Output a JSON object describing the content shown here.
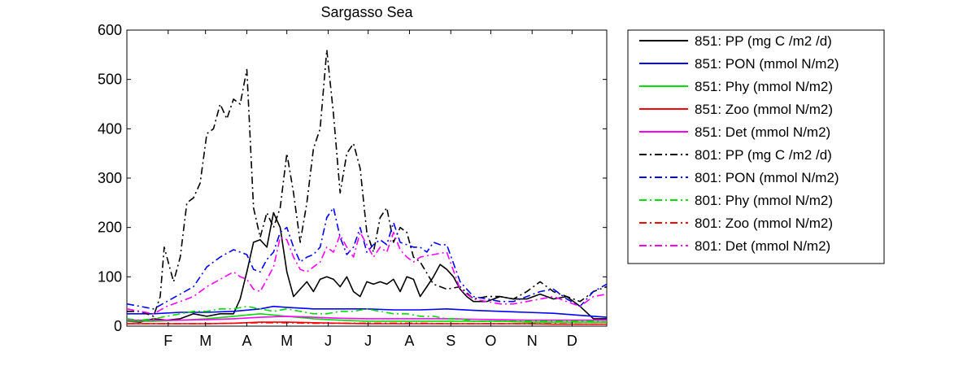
{
  "chart_data": {
    "type": "line",
    "title": "Sargasso Sea",
    "xlabel": "",
    "ylabel": "",
    "xlim": [
      0,
      360
    ],
    "ylim": [
      0,
      600
    ],
    "grid": false,
    "legend_position": "outside-right",
    "month_ticks": [
      {
        "label": "F",
        "x": 31
      },
      {
        "label": "M",
        "x": 59
      },
      {
        "label": "A",
        "x": 90
      },
      {
        "label": "M",
        "x": 120
      },
      {
        "label": "J",
        "x": 151
      },
      {
        "label": "J",
        "x": 181
      },
      {
        "label": "A",
        "x": 212
      },
      {
        "label": "S",
        "x": 243
      },
      {
        "label": "O",
        "x": 273
      },
      {
        "label": "N",
        "x": 304
      },
      {
        "label": "D",
        "x": 334
      }
    ],
    "y_ticks": [
      0,
      100,
      200,
      300,
      400,
      500,
      600
    ],
    "series": [
      {
        "name": "851: PP (mg C /m2 /d)",
        "color": "#000000",
        "style": "solid",
        "x": [
          0,
          10,
          20,
          30,
          40,
          50,
          60,
          70,
          80,
          85,
          90,
          95,
          100,
          105,
          110,
          115,
          120,
          125,
          130,
          135,
          140,
          145,
          150,
          155,
          160,
          165,
          170,
          175,
          180,
          185,
          190,
          195,
          200,
          205,
          210,
          215,
          220,
          225,
          230,
          235,
          240,
          245,
          250,
          255,
          260,
          270,
          280,
          290,
          300,
          310,
          320,
          330,
          340,
          350,
          360
        ],
        "y": [
          10,
          8,
          15,
          12,
          15,
          25,
          20,
          25,
          25,
          55,
          110,
          170,
          175,
          160,
          230,
          200,
          110,
          60,
          75,
          90,
          70,
          95,
          100,
          95,
          80,
          100,
          70,
          60,
          90,
          85,
          90,
          85,
          95,
          70,
          100,
          95,
          60,
          80,
          100,
          125,
          115,
          100,
          75,
          60,
          50,
          50,
          60,
          55,
          55,
          65,
          55,
          60,
          40,
          15,
          15
        ]
      },
      {
        "name": "851: PON (mmol N/m2)",
        "color": "#0000ff",
        "style": "solid",
        "x": [
          0,
          20,
          40,
          60,
          80,
          100,
          110,
          120,
          140,
          160,
          180,
          200,
          220,
          240,
          260,
          280,
          300,
          320,
          340,
          360
        ],
        "y": [
          25,
          25,
          28,
          28,
          30,
          35,
          40,
          38,
          35,
          35,
          35,
          33,
          33,
          35,
          32,
          30,
          28,
          26,
          22,
          18
        ]
      },
      {
        "name": "851: Phy (mmol N/m2)",
        "color": "#00dd00",
        "style": "solid",
        "x": [
          0,
          20,
          40,
          60,
          80,
          100,
          120,
          140,
          160,
          180,
          200,
          220,
          240,
          260,
          280,
          300,
          320,
          340,
          360
        ],
        "y": [
          10,
          10,
          12,
          15,
          20,
          25,
          20,
          15,
          12,
          10,
          10,
          10,
          10,
          10,
          10,
          8,
          8,
          8,
          8
        ]
      },
      {
        "name": "851: Zoo (mmol N/m2)",
        "color": "#ff0000",
        "style": "solid",
        "x": [
          0,
          20,
          40,
          60,
          80,
          100,
          120,
          140,
          160,
          180,
          200,
          220,
          240,
          260,
          280,
          300,
          320,
          340,
          360
        ],
        "y": [
          5,
          5,
          5,
          5,
          6,
          8,
          8,
          7,
          6,
          5,
          5,
          5,
          5,
          5,
          5,
          5,
          4,
          4,
          4
        ]
      },
      {
        "name": "851: Det (mmol N/m2)",
        "color": "#ff00ff",
        "style": "solid",
        "x": [
          0,
          20,
          40,
          60,
          80,
          100,
          120,
          140,
          160,
          180,
          200,
          220,
          240,
          260,
          280,
          300,
          320,
          340,
          360
        ],
        "y": [
          12,
          12,
          12,
          13,
          15,
          18,
          20,
          18,
          16,
          15,
          15,
          15,
          15,
          14,
          13,
          12,
          12,
          12,
          12
        ]
      },
      {
        "name": "801: PP (mg C /m2 /d)",
        "color": "#000000",
        "style": "dashdot",
        "x": [
          0,
          10,
          20,
          25,
          28,
          30,
          35,
          40,
          45,
          50,
          55,
          60,
          65,
          70,
          75,
          80,
          85,
          90,
          95,
          100,
          105,
          110,
          115,
          120,
          125,
          130,
          135,
          140,
          145,
          150,
          155,
          160,
          165,
          170,
          175,
          180,
          185,
          190,
          195,
          200,
          205,
          210,
          215,
          220,
          230,
          240,
          250,
          260,
          270,
          280,
          290,
          300,
          310,
          320,
          330,
          340,
          350,
          360
        ],
        "y": [
          30,
          30,
          20,
          60,
          160,
          140,
          90,
          140,
          250,
          260,
          290,
          390,
          400,
          450,
          420,
          460,
          450,
          520,
          240,
          180,
          230,
          200,
          240,
          350,
          270,
          170,
          250,
          360,
          400,
          560,
          430,
          270,
          350,
          370,
          320,
          190,
          150,
          220,
          240,
          170,
          200,
          190,
          140,
          130,
          85,
          75,
          80,
          55,
          60,
          60,
          55,
          70,
          90,
          70,
          60,
          50,
          70,
          80
        ]
      },
      {
        "name": "801: PON (mmol N/m2)",
        "color": "#0000ff",
        "style": "dashdot",
        "x": [
          0,
          10,
          20,
          30,
          40,
          50,
          60,
          70,
          80,
          85,
          90,
          95,
          100,
          105,
          110,
          115,
          120,
          125,
          130,
          135,
          140,
          145,
          150,
          155,
          160,
          165,
          170,
          175,
          180,
          185,
          190,
          195,
          200,
          205,
          210,
          215,
          220,
          225,
          230,
          235,
          240,
          250,
          260,
          270,
          280,
          290,
          300,
          310,
          320,
          330,
          340,
          350,
          360
        ],
        "y": [
          45,
          40,
          35,
          50,
          65,
          80,
          120,
          140,
          155,
          150,
          145,
          115,
          110,
          135,
          150,
          190,
          200,
          160,
          130,
          140,
          145,
          160,
          220,
          240,
          180,
          145,
          160,
          200,
          150,
          165,
          175,
          165,
          210,
          170,
          165,
          160,
          160,
          150,
          170,
          165,
          165,
          90,
          60,
          55,
          50,
          50,
          60,
          70,
          75,
          55,
          40,
          70,
          85
        ]
      },
      {
        "name": "801: Phy (mmol N/m2)",
        "color": "#00dd00",
        "style": "dashdot",
        "x": [
          0,
          10,
          20,
          30,
          40,
          50,
          60,
          70,
          80,
          90,
          100,
          110,
          120,
          130,
          140,
          150,
          160,
          170,
          180,
          190,
          200,
          210,
          220,
          230,
          240,
          250,
          260,
          270,
          280,
          290,
          300,
          310,
          320,
          330,
          340,
          350,
          360
        ],
        "y": [
          15,
          12,
          15,
          20,
          25,
          30,
          30,
          35,
          35,
          40,
          35,
          30,
          35,
          30,
          25,
          25,
          30,
          30,
          35,
          30,
          25,
          25,
          20,
          20,
          15,
          15,
          10,
          10,
          10,
          10,
          10,
          10,
          10,
          10,
          10,
          10,
          8
        ]
      },
      {
        "name": "801: Zoo (mmol N/m2)",
        "color": "#ff0000",
        "style": "dashdot",
        "x": [
          0,
          20,
          40,
          60,
          80,
          100,
          120,
          140,
          160,
          180,
          200,
          220,
          240,
          260,
          280,
          300,
          320,
          340,
          360
        ],
        "y": [
          5,
          5,
          5,
          5,
          6,
          7,
          7,
          6,
          6,
          6,
          6,
          6,
          5,
          5,
          5,
          5,
          5,
          4,
          4
        ]
      },
      {
        "name": "801: Det (mmol N/m2)",
        "color": "#ff00ff",
        "style": "dashdot",
        "x": [
          0,
          10,
          20,
          30,
          40,
          50,
          60,
          70,
          80,
          85,
          90,
          95,
          100,
          105,
          110,
          115,
          120,
          125,
          130,
          135,
          140,
          145,
          150,
          155,
          160,
          165,
          170,
          175,
          180,
          185,
          190,
          195,
          200,
          205,
          210,
          215,
          220,
          230,
          240,
          250,
          260,
          270,
          280,
          290,
          300,
          310,
          320,
          330,
          340,
          350,
          360
        ],
        "y": [
          35,
          30,
          25,
          40,
          50,
          60,
          80,
          95,
          110,
          100,
          95,
          75,
          70,
          95,
          120,
          180,
          175,
          140,
          115,
          110,
          120,
          130,
          160,
          150,
          185,
          160,
          140,
          190,
          165,
          140,
          160,
          150,
          190,
          155,
          140,
          130,
          140,
          145,
          150,
          75,
          55,
          50,
          45,
          45,
          50,
          55,
          60,
          50,
          40,
          60,
          65
        ]
      }
    ]
  }
}
